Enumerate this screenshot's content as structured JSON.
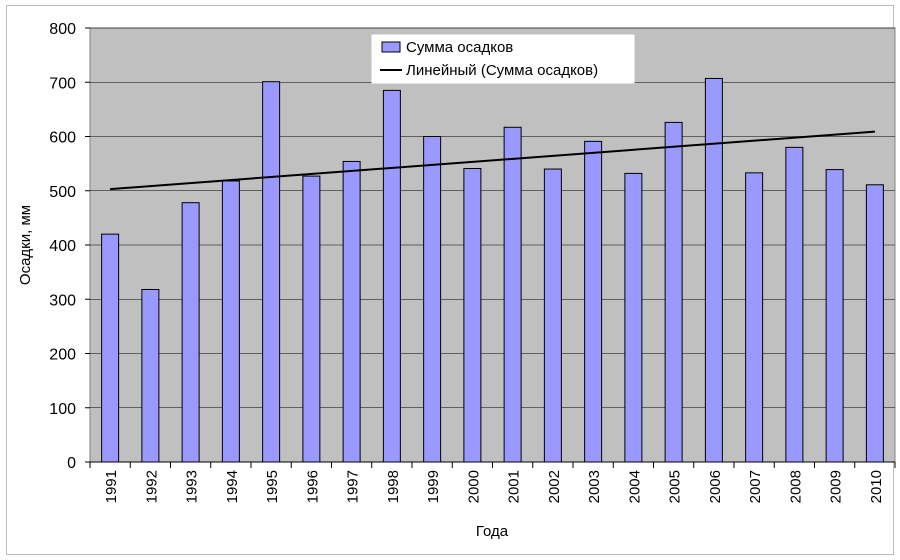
{
  "chart_data": {
    "type": "bar",
    "categories": [
      "1991",
      "1992",
      "1993",
      "1994",
      "1995",
      "1996",
      "1997",
      "1998",
      "1999",
      "2000",
      "2001",
      "2002",
      "2003",
      "2004",
      "2005",
      "2006",
      "2007",
      "2008",
      "2009",
      "2010"
    ],
    "series": [
      {
        "name": "Сумма осадков",
        "type": "bar",
        "color": "#9999ff",
        "values": [
          420,
          318,
          478,
          518,
          701,
          527,
          554,
          685,
          600,
          541,
          617,
          540,
          591,
          532,
          626,
          707,
          533,
          580,
          539,
          511
        ]
      },
      {
        "name": "Линейный (Сумма осадков)",
        "type": "line",
        "color": "#000000",
        "values_start_end": [
          503,
          609
        ]
      }
    ],
    "xlabel": "Года",
    "ylabel": "Осадки, мм",
    "ylim": [
      0,
      800
    ],
    "yticks": [
      0,
      100,
      200,
      300,
      400,
      500,
      600,
      700,
      800
    ],
    "grid": true,
    "legend_position": "top-center",
    "plot_background": "#c0c0c0"
  }
}
